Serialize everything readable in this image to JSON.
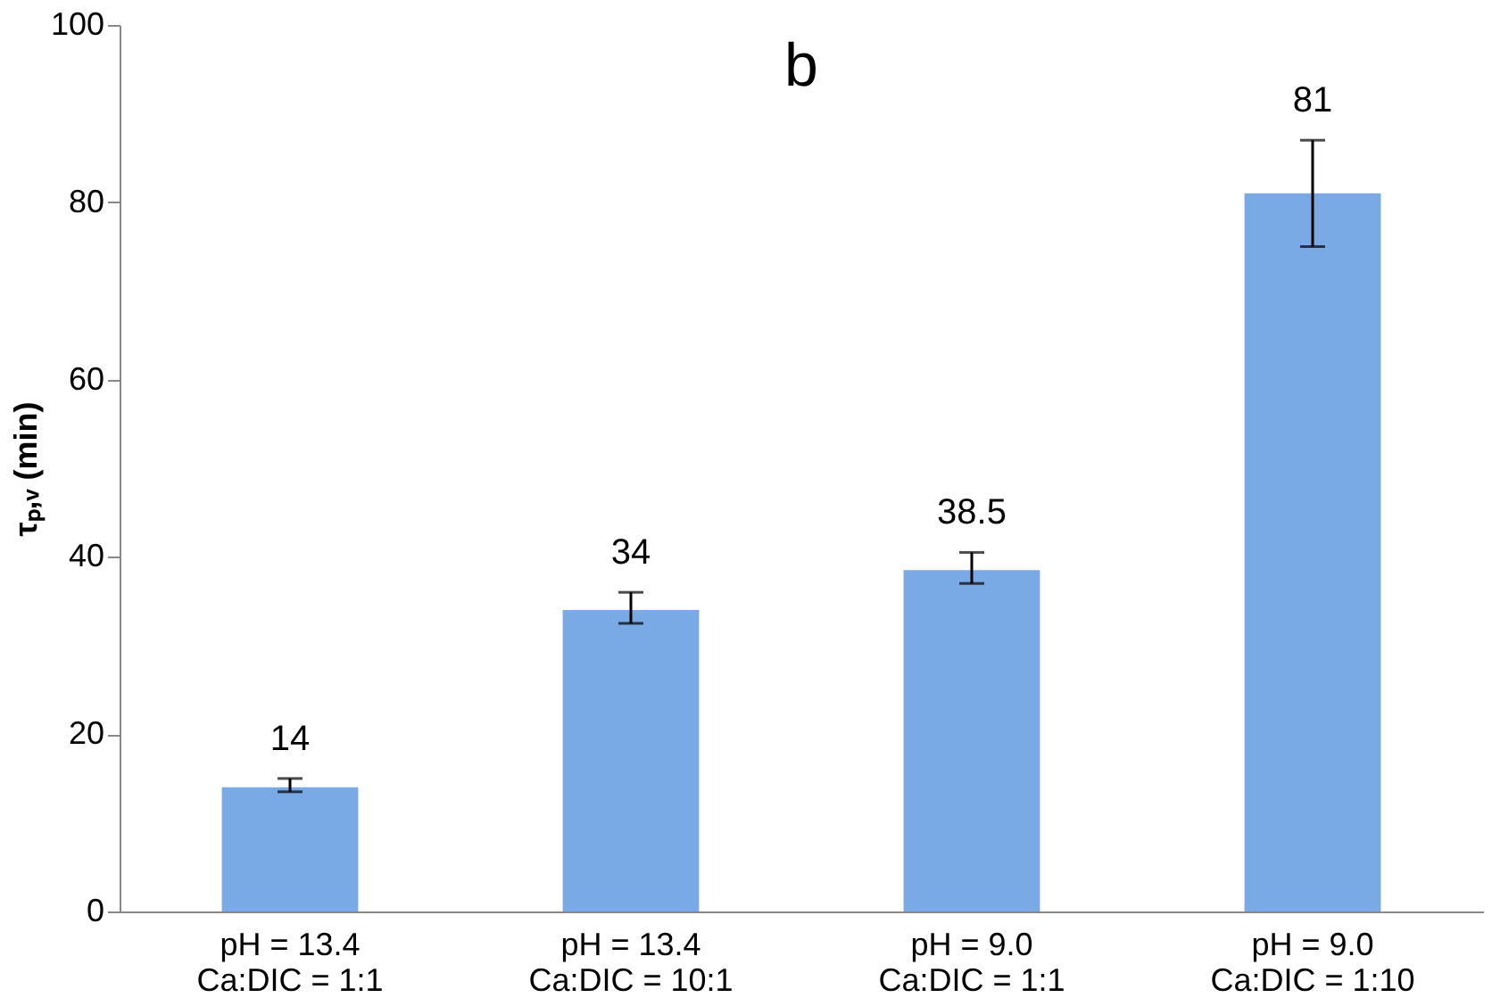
{
  "chart_data": {
    "type": "bar",
    "title": "b",
    "ylabel": "τₚ,ᵥ (min)",
    "categories": [
      "pH = 13.4\nCa:DIC = 1:1",
      "pH = 13.4\nCa:DIC = 10:1",
      "pH = 9.0\nCa:DIC = 1:1",
      "pH = 9.0\nCa:DIC = 1:10"
    ],
    "values": [
      14,
      34,
      38.5,
      81
    ],
    "errors": [
      [
        13.5,
        15
      ],
      [
        32.5,
        36
      ],
      [
        37,
        40.5
      ],
      [
        75,
        87
      ]
    ],
    "color": "#7aaae6",
    "data_labels": true,
    "ylim": [
      0,
      100
    ],
    "yticks": [
      0,
      20,
      40,
      60,
      80,
      100
    ],
    "grid": false
  }
}
